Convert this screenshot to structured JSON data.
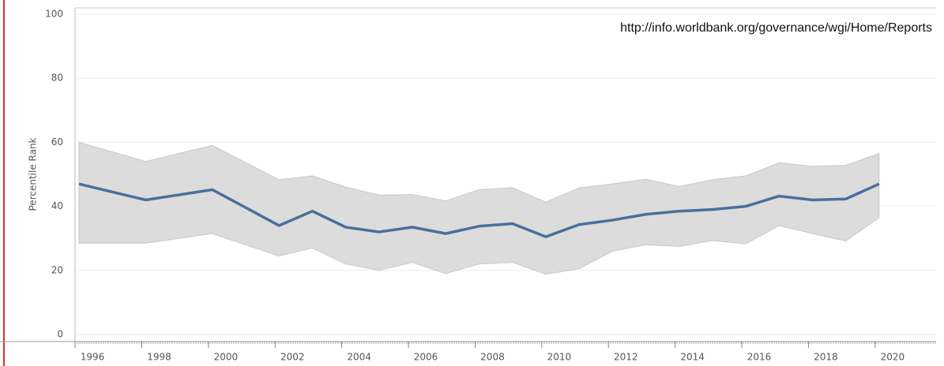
{
  "chart_data": {
    "type": "line",
    "annotation": "http://info.worldbank.org/governance/wgi/Home/Reports",
    "y_label": "Percentile Rank",
    "x": [
      1996,
      1998,
      2000,
      2002,
      2003,
      2004,
      2005,
      2006,
      2007,
      2008,
      2009,
      2010,
      2011,
      2012,
      2013,
      2014,
      2015,
      2016,
      2017,
      2018,
      2019,
      2020
    ],
    "values": [
      47,
      42,
      45.2,
      34,
      38.5,
      33.5,
      32,
      33.5,
      31.5,
      33.8,
      34.6,
      30.5,
      34.3,
      35.7,
      37.5,
      38.5,
      39,
      40,
      43.2,
      42,
      42.3,
      47
    ],
    "upper": [
      60,
      54,
      59,
      48.3,
      49.5,
      46,
      43.5,
      43.7,
      41.7,
      45.2,
      45.8,
      41.3,
      45.8,
      47,
      48.5,
      46.2,
      48.3,
      49.5,
      53.6,
      52.5,
      52.8,
      56.5
    ],
    "lower": [
      28.5,
      28.5,
      31.5,
      24.5,
      27,
      22,
      20,
      22.5,
      19,
      22,
      22.5,
      18.8,
      20.5,
      26,
      28,
      27.5,
      29.3,
      28.3,
      34,
      31.5,
      29.2,
      36.5
    ],
    "color": "#4a6f9c",
    "band_color": "#dcdcdc",
    "xlim": [
      1995.88,
      2021.71
    ],
    "xticks": [
      1996,
      1998,
      2000,
      2002,
      2004,
      2006,
      2008,
      2010,
      2012,
      2014,
      2016,
      2018,
      2020
    ],
    "ylim": [
      0,
      100
    ],
    "yticks": [
      0,
      20,
      40,
      60,
      80,
      100
    ],
    "grid": true
  }
}
